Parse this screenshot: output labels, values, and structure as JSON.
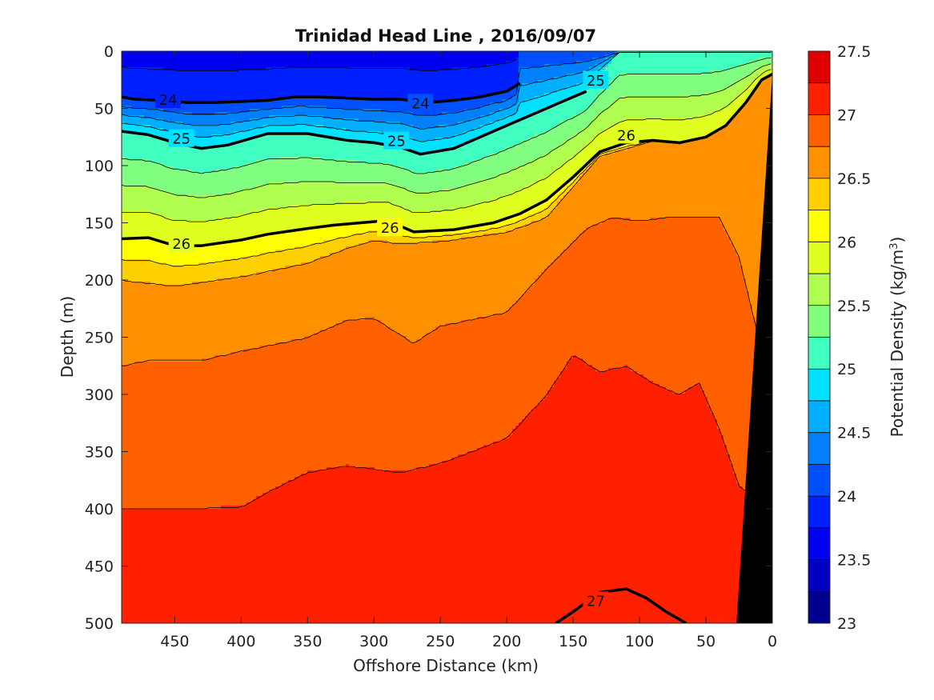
{
  "chart_data": {
    "type": "heatmap",
    "subtype": "filled-contour-section",
    "title": "Trinidad Head Line , 2016/09/07",
    "xlabel": "Offshore Distance (km)",
    "ylabel": "Depth (m)",
    "xlim": [
      490,
      0
    ],
    "ylim": [
      0,
      500
    ],
    "x_reversed": true,
    "y_reversed": true,
    "x_ticks": [
      "450",
      "400",
      "350",
      "300",
      "250",
      "200",
      "150",
      "100",
      "50",
      "0"
    ],
    "y_ticks": [
      "0",
      "50",
      "100",
      "150",
      "200",
      "250",
      "300",
      "350",
      "400",
      "450",
      "500"
    ],
    "colorbar": {
      "label_prefix": "Potential Density (kg/m",
      "label_exp": "3",
      "label_suffix": ")",
      "range": [
        23,
        27.5
      ],
      "ticks": [
        "23",
        "23.5",
        "24",
        "24.5",
        "25",
        "25.5",
        "26",
        "26.5",
        "27",
        "27.5"
      ],
      "levels": [
        23,
        23.25,
        23.5,
        23.75,
        24,
        24.25,
        24.5,
        24.75,
        25,
        25.25,
        25.5,
        25.75,
        26,
        26.25,
        26.5,
        26.75,
        27,
        27.25,
        27.5
      ],
      "colors": [
        "#00008f",
        "#0000c0",
        "#0000f0",
        "#0020ff",
        "#0050ff",
        "#0080ff",
        "#00b0ff",
        "#00e0ff",
        "#40ffc0",
        "#80ff80",
        "#b0ff50",
        "#e0ff20",
        "#ffff00",
        "#ffd000",
        "#ff9000",
        "#ff6000",
        "#ff2000",
        "#e00000",
        "#b00000"
      ]
    },
    "contour_lines": [
      {
        "level": 24,
        "x": [
          490,
          480,
          460,
          440,
          420,
          400,
          380,
          360,
          340,
          320,
          300,
          280,
          260,
          240,
          220,
          200,
          190
        ],
        "depth": [
          40,
          42,
          43,
          45,
          45,
          44,
          43,
          40,
          40,
          41,
          42,
          42,
          45,
          43,
          40,
          35,
          28
        ]
      },
      {
        "level": 25,
        "x": [
          490,
          470,
          450,
          430,
          410,
          380,
          350,
          320,
          300,
          280,
          265,
          240,
          220,
          200,
          180,
          160,
          140
        ],
        "depth": [
          70,
          73,
          80,
          85,
          82,
          72,
          72,
          78,
          80,
          84,
          90,
          85,
          75,
          65,
          55,
          45,
          35
        ]
      },
      {
        "level": 26,
        "x": [
          490,
          470,
          450,
          430,
          400,
          380,
          350,
          330,
          310,
          290,
          270,
          240,
          210,
          190,
          170,
          150,
          130,
          110,
          90,
          70,
          50,
          35,
          20,
          8,
          0
        ],
        "depth": [
          164,
          163,
          170,
          170,
          165,
          160,
          155,
          152,
          150,
          148,
          158,
          156,
          150,
          142,
          130,
          110,
          88,
          80,
          78,
          80,
          75,
          65,
          45,
          25,
          20
        ]
      },
      {
        "level": 27,
        "x": [
          163,
          150,
          130,
          110,
          95,
          80,
          65
        ],
        "depth": [
          500,
          490,
          473,
          470,
          478,
          490,
          500
        ]
      }
    ],
    "contour_labels": [
      {
        "text": "24",
        "x": 455,
        "depth": 42
      },
      {
        "text": "24",
        "x": 265,
        "depth": 45
      },
      {
        "text": "25",
        "x": 133,
        "depth": 25
      },
      {
        "text": "25",
        "x": 445,
        "depth": 76
      },
      {
        "text": "25",
        "x": 283,
        "depth": 78
      },
      {
        "text": "26",
        "x": 110,
        "depth": 73
      },
      {
        "text": "26",
        "x": 445,
        "depth": 168
      },
      {
        "text": "26",
        "x": 288,
        "depth": 154
      },
      {
        "text": "27",
        "x": 133,
        "depth": 480
      }
    ],
    "bottom_topography": {
      "x": [
        0,
        0,
        25,
        55
      ],
      "depth": [
        0,
        500,
        500,
        0
      ],
      "color": "#000000"
    }
  }
}
